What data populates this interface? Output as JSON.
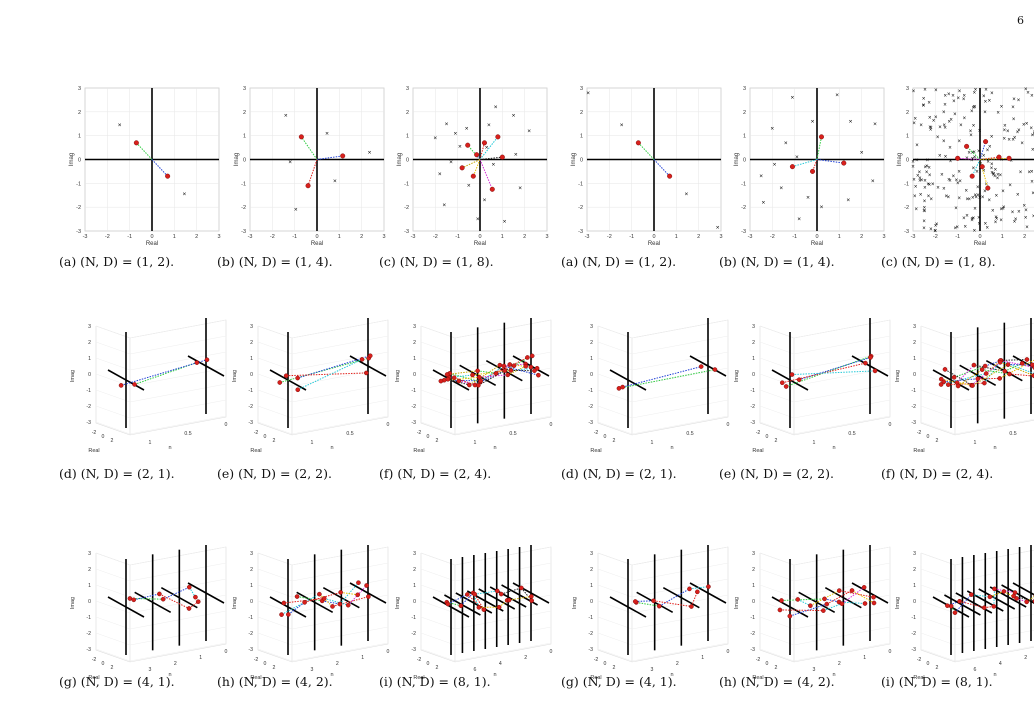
{
  "page_number": "6",
  "axis_text": {
    "real": "Real",
    "imag": "Imag",
    "n": "n",
    "ticks_2d": [
      "-3",
      "-2",
      "-1",
      "0",
      "1",
      "2",
      "3"
    ],
    "ticks_3d_y": [
      "3",
      "2",
      "1",
      "0",
      "-1",
      "-2",
      "-3"
    ]
  },
  "captions": {
    "left": [
      "(a) (N, D) = (1, 2).",
      "(b) (N, D) = (1, 4).",
      "(c) (N, D) = (1, 8).",
      "(d) (N, D) = (2, 1).",
      "(e) (N, D) = (2, 2).",
      "(f) (N, D) = (2, 4).",
      "(g) (N, D) = (4, 1).",
      "(h) (N, D) = (4, 2).",
      "(i) (N, D) = (8, 1)."
    ],
    "right": [
      "(a) (N, D) = (1, 2).",
      "(b) (N, D) = (1, 4).",
      "(c) (N, D) = (1, 8).",
      "(d) (N, D) = (2, 1).",
      "(e) (N, D) = (2, 2).",
      "(f) (N, D) = (2, 4).",
      "(g) (N, D) = (4, 1).",
      "(h) (N, D) = (4, 2).",
      "(i) (N, D) = (8, 1)."
    ]
  },
  "n_ticks": {
    "d": [
      "1",
      "0.5",
      "0"
    ],
    "e": [
      "1",
      "0.5",
      "0"
    ],
    "f": [
      "1",
      "0.5",
      "0"
    ],
    "g": [
      "3",
      "2",
      "1",
      "0"
    ],
    "h": [
      "3",
      "2",
      "1",
      "0"
    ],
    "i": [
      "6",
      "4",
      "2",
      "0"
    ]
  },
  "real_ticks_3d": [
    "-2",
    "0",
    "2"
  ],
  "chart_data": [
    {
      "id": "left-a",
      "type": "scatter",
      "title": "(a) (N, D) = (1, 2).",
      "xlabel": "Real",
      "ylabel": "Imag",
      "xlim": [
        -3,
        3
      ],
      "ylim": [
        -3,
        3
      ],
      "series": [
        {
          "name": "",
          "values": []
        }
      ],
      "points": [
        [
          -0.7,
          0.7
        ],
        [
          0.7,
          -0.7
        ]
      ],
      "crosses": [
        [
          -1.45,
          1.45
        ],
        [
          1.45,
          -1.45
        ]
      ]
    },
    {
      "id": "left-b",
      "type": "scatter",
      "title": "(b) (N, D) = (1, 4).",
      "xlabel": "Real",
      "ylabel": "Imag",
      "xlim": [
        -3,
        3
      ],
      "ylim": [
        -3,
        3
      ],
      "points": [
        [
          -0.7,
          0.95
        ],
        [
          1.15,
          0.15
        ],
        [
          -0.4,
          -1.1
        ]
      ],
      "crosses": [
        [
          -1.4,
          1.85
        ],
        [
          0.45,
          1.1
        ],
        [
          2.35,
          0.3
        ],
        [
          -1.2,
          -0.1
        ],
        [
          0.8,
          -0.9
        ],
        [
          -0.95,
          -2.1
        ]
      ]
    },
    {
      "id": "left-c",
      "type": "scatter",
      "title": "(c) (N, D) = (1, 8).",
      "xlabel": "Real",
      "ylabel": "Imag",
      "xlim": [
        -3,
        3
      ],
      "ylim": [
        -3,
        3
      ],
      "points": [
        [
          -0.55,
          0.6
        ],
        [
          -0.15,
          0.2
        ],
        [
          0.2,
          0.7
        ],
        [
          0.8,
          0.95
        ],
        [
          -0.3,
          -0.7
        ],
        [
          0.55,
          -1.25
        ],
        [
          1.0,
          0.1
        ],
        [
          -0.8,
          -0.35
        ]
      ],
      "crosses": [
        [
          -1.5,
          1.5
        ],
        [
          -1.1,
          1.1
        ],
        [
          -0.6,
          1.3
        ],
        [
          0.4,
          1.45
        ],
        [
          1.5,
          1.85
        ],
        [
          -0.9,
          0.55
        ],
        [
          0.3,
          0.5
        ],
        [
          1.6,
          0.2
        ],
        [
          -1.8,
          -0.6
        ],
        [
          -1.3,
          -0.1
        ],
        [
          0.6,
          -0.2
        ],
        [
          -0.5,
          -1.1
        ],
        [
          0.2,
          -1.7
        ],
        [
          1.1,
          -2.6
        ],
        [
          -1.6,
          -1.9
        ],
        [
          -0.1,
          -2.5
        ],
        [
          1.8,
          -1.2
        ],
        [
          -2.0,
          0.9
        ],
        [
          2.2,
          1.2
        ],
        [
          0.7,
          2.2
        ]
      ]
    },
    {
      "id": "right-a",
      "type": "scatter",
      "title": "(a) (N, D) = (1, 2).",
      "xlabel": "Real",
      "ylabel": "Imag",
      "xlim": [
        -3,
        3
      ],
      "ylim": [
        -3,
        3
      ],
      "points": [
        [
          -0.7,
          0.7
        ],
        [
          0.7,
          -0.7
        ]
      ],
      "crosses": [
        [
          -2.95,
          2.8
        ],
        [
          -1.45,
          1.45
        ],
        [
          1.45,
          -1.45
        ],
        [
          2.85,
          -2.85
        ]
      ]
    },
    {
      "id": "right-b",
      "type": "scatter",
      "title": "(b) (N, D) = (1, 4).",
      "xlabel": "Real",
      "ylabel": "Imag",
      "xlim": [
        -3,
        3
      ],
      "ylim": [
        -3,
        3
      ],
      "points": [
        [
          0.2,
          0.95
        ],
        [
          1.2,
          -0.15
        ],
        [
          -0.2,
          -0.5
        ],
        [
          -1.1,
          -0.3
        ]
      ],
      "crosses": [
        [
          -1.1,
          2.6
        ],
        [
          0.9,
          2.7
        ],
        [
          -2.0,
          1.3
        ],
        [
          -0.2,
          1.6
        ],
        [
          1.5,
          1.6
        ],
        [
          2.6,
          1.5
        ],
        [
          -1.4,
          0.7
        ],
        [
          -0.9,
          0.1
        ],
        [
          2.0,
          0.3
        ],
        [
          -2.5,
          -0.7
        ],
        [
          -1.6,
          -1.2
        ],
        [
          -0.4,
          -1.6
        ],
        [
          1.4,
          -1.7
        ],
        [
          -2.4,
          -1.8
        ],
        [
          0.2,
          -2.0
        ],
        [
          -0.8,
          -2.5
        ],
        [
          2.5,
          -0.9
        ],
        [
          -1.9,
          -0.2
        ]
      ]
    },
    {
      "id": "right-c",
      "type": "scatter",
      "title": "(c) (N, D) = (1, 8).",
      "xlabel": "Real",
      "ylabel": "Imag",
      "xlim": [
        -3,
        3
      ],
      "ylim": [
        -3,
        3
      ],
      "points": [
        [
          -0.6,
          0.55
        ],
        [
          0.25,
          0.75
        ],
        [
          0.85,
          0.1
        ],
        [
          -0.35,
          -0.7
        ],
        [
          0.35,
          -1.2
        ],
        [
          -1.0,
          0.05
        ],
        [
          0.1,
          -0.3
        ],
        [
          1.3,
          0.05
        ]
      ],
      "crosses": []
    },
    {
      "id": "3d-panels",
      "type": "scatter",
      "title": "",
      "note": "3D panels (d)-(i) in both columns",
      "series": []
    }
  ]
}
